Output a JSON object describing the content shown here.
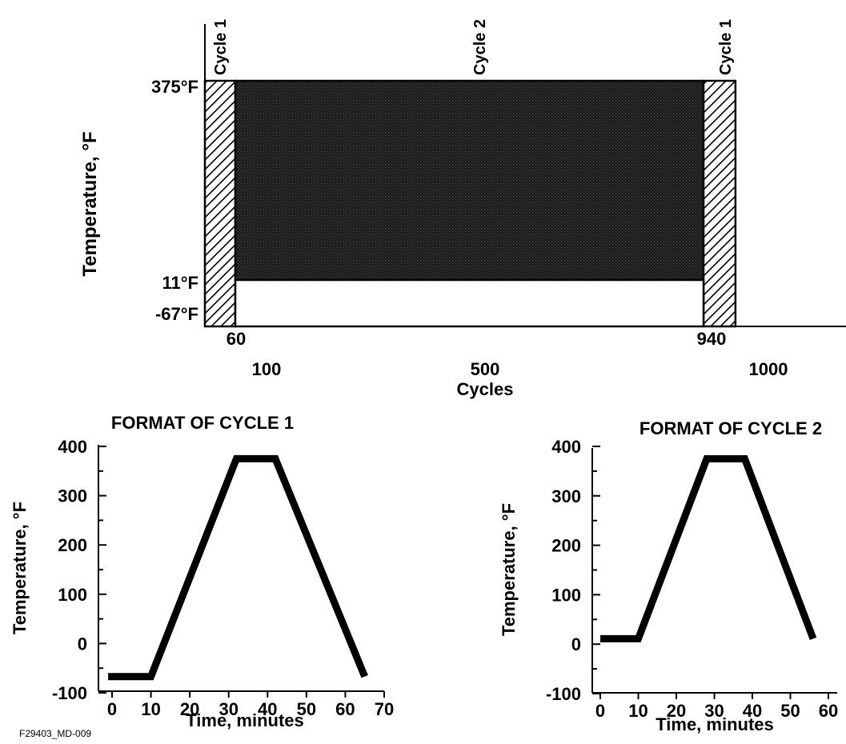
{
  "chart_data": [
    {
      "type": "area",
      "title": "",
      "xlabel": "Cycles",
      "ylabel": "Temperature, °F",
      "x_ticks": [
        "100",
        "500",
        "1000"
      ],
      "y_ticks": [
        "375°F",
        "11°F",
        "-67°F"
      ],
      "annotations": [
        "60",
        "940"
      ],
      "regions": [
        {
          "name": "Cycle 1",
          "x": [
            0,
            60
          ],
          "y": [
            -67,
            375
          ],
          "fill": "hatched"
        },
        {
          "name": "Cycle 2",
          "x": [
            60,
            940
          ],
          "y": [
            11,
            375
          ],
          "fill": "stippled"
        },
        {
          "name": "Cycle 1",
          "x": [
            940,
            1000
          ],
          "y": [
            -67,
            375
          ],
          "fill": "hatched"
        }
      ]
    },
    {
      "type": "line",
      "title": "FORMAT OF CYCLE 1",
      "xlabel": "Time, minutes",
      "ylabel": "Temperature, °F",
      "xlim": [
        0,
        70
      ],
      "ylim": [
        -100,
        400
      ],
      "x_ticks": [
        0,
        10,
        20,
        30,
        40,
        50,
        60,
        70
      ],
      "y_ticks": [
        -100,
        0,
        100,
        200,
        300,
        400
      ],
      "series": [
        {
          "x": [
            -1,
            10,
            32,
            42,
            65
          ],
          "y": [
            -67,
            -67,
            375,
            375,
            -67
          ]
        }
      ]
    },
    {
      "type": "line",
      "title": "FORMAT OF CYCLE 2",
      "xlabel": "Time, minutes",
      "ylabel": "Temperature, °F",
      "xlim": [
        0,
        60
      ],
      "ylim": [
        -100,
        400
      ],
      "x_ticks": [
        0,
        10,
        20,
        30,
        40,
        50,
        60
      ],
      "y_ticks": [
        -100,
        0,
        100,
        200,
        300,
        400
      ],
      "series": [
        {
          "x": [
            0,
            10,
            28,
            38,
            56
          ],
          "y": [
            11,
            11,
            375,
            375,
            11
          ]
        }
      ]
    }
  ],
  "footer_code": "F29403_MD-009",
  "colors": {
    "ink": "#000000",
    "stipple": "#1c1c1c",
    "background": "#ffffff"
  }
}
